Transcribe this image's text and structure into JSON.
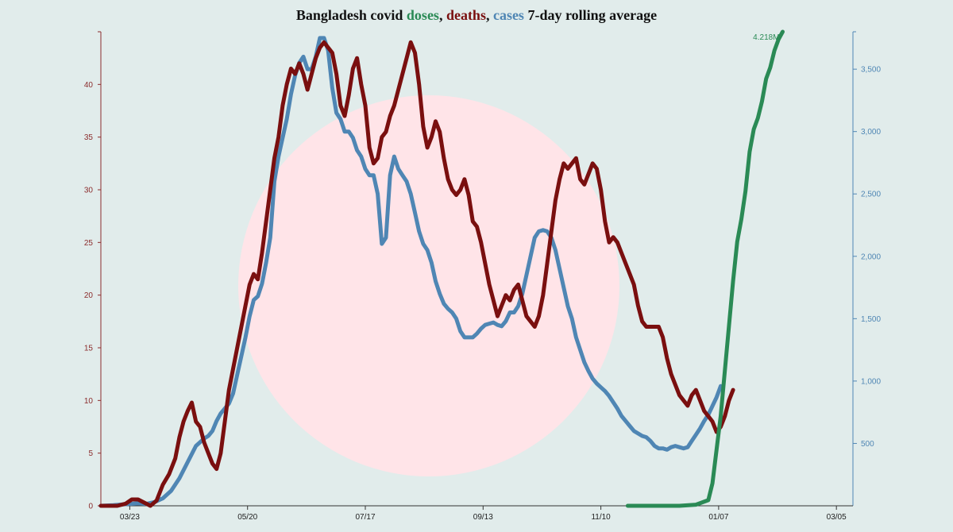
{
  "title": {
    "prefix": "Bangladesh covid ",
    "doses": "doses",
    "sep1": ", ",
    "deaths": "deaths",
    "sep2": ", ",
    "cases": "cases",
    "suffix": " 7-day rolling average"
  },
  "colors": {
    "background": "#e1eceb",
    "circle": "#ffe4e8",
    "doses": "#2a8a55",
    "deaths": "#7a0f0f",
    "cases": "#4f86b4",
    "left_axis": "#8b2c2c",
    "right_axis": "#4f86b4",
    "x_axis": "#333333"
  },
  "chart_data": {
    "type": "line",
    "title": "Bangladesh covid doses, deaths, cases 7-day rolling average",
    "x_ticks": [
      "03/23",
      "05/20",
      "07/17",
      "09/13",
      "11/10",
      "01/07",
      "03/05"
    ],
    "x_range": [
      0,
      364
    ],
    "left_axis": {
      "range": [
        0,
        45
      ],
      "ticks": [
        0,
        5,
        10,
        15,
        20,
        25,
        30,
        35,
        40
      ]
    },
    "right_axis": {
      "range": [
        0,
        3800
      ],
      "ticks": [
        500,
        1000,
        1500,
        2000,
        2500,
        3000,
        3500
      ],
      "tick_labels": [
        "500",
        "1,000",
        "1,500",
        "2,000",
        "2,500",
        "3,000",
        "3,500"
      ]
    },
    "annotations": [
      {
        "text": "4.218M",
        "series": "doses"
      }
    ],
    "series": [
      {
        "name": "deaths",
        "axis": "left",
        "points": [
          [
            0,
            0
          ],
          [
            8,
            0
          ],
          [
            12,
            0.2
          ],
          [
            15,
            0.6
          ],
          [
            18,
            0.6
          ],
          [
            21,
            0.3
          ],
          [
            24,
            0
          ],
          [
            27,
            0.5
          ],
          [
            30,
            2
          ],
          [
            33,
            3
          ],
          [
            36,
            4.5
          ],
          [
            38,
            6.5
          ],
          [
            40,
            8
          ],
          [
            42,
            9
          ],
          [
            44,
            9.8
          ],
          [
            46,
            8
          ],
          [
            48,
            7.5
          ],
          [
            50,
            6
          ],
          [
            52,
            5
          ],
          [
            54,
            4
          ],
          [
            56,
            3.5
          ],
          [
            58,
            5
          ],
          [
            60,
            8
          ],
          [
            62,
            11
          ],
          [
            64,
            13
          ],
          [
            66,
            15
          ],
          [
            68,
            17
          ],
          [
            70,
            19
          ],
          [
            72,
            21
          ],
          [
            74,
            22
          ],
          [
            76,
            21.5
          ],
          [
            78,
            24
          ],
          [
            80,
            27
          ],
          [
            82,
            30
          ],
          [
            84,
            33
          ],
          [
            86,
            35
          ],
          [
            88,
            38
          ],
          [
            90,
            40
          ],
          [
            92,
            41.5
          ],
          [
            94,
            41
          ],
          [
            96,
            42
          ],
          [
            98,
            41
          ],
          [
            100,
            39.5
          ],
          [
            102,
            41
          ],
          [
            104,
            42.5
          ],
          [
            106,
            43.5
          ],
          [
            108,
            44
          ],
          [
            110,
            43.5
          ],
          [
            112,
            43
          ],
          [
            114,
            41
          ],
          [
            116,
            38
          ],
          [
            118,
            37
          ],
          [
            120,
            39
          ],
          [
            122,
            41.5
          ],
          [
            124,
            42.5
          ],
          [
            126,
            40
          ],
          [
            128,
            38
          ],
          [
            130,
            34
          ],
          [
            132,
            32.5
          ],
          [
            134,
            33
          ],
          [
            136,
            35
          ],
          [
            138,
            35.5
          ],
          [
            140,
            37
          ],
          [
            142,
            38
          ],
          [
            144,
            39.5
          ],
          [
            146,
            41
          ],
          [
            148,
            42.5
          ],
          [
            150,
            44
          ],
          [
            152,
            43
          ],
          [
            154,
            40
          ],
          [
            156,
            36
          ],
          [
            158,
            34
          ],
          [
            160,
            35
          ],
          [
            162,
            36.5
          ],
          [
            164,
            35.5
          ],
          [
            166,
            33
          ],
          [
            168,
            31
          ],
          [
            170,
            30
          ],
          [
            172,
            29.5
          ],
          [
            174,
            30
          ],
          [
            176,
            31
          ],
          [
            178,
            29.5
          ],
          [
            180,
            27
          ],
          [
            182,
            26.5
          ],
          [
            184,
            25
          ],
          [
            186,
            23
          ],
          [
            188,
            21
          ],
          [
            190,
            19.5
          ],
          [
            192,
            18
          ],
          [
            194,
            19
          ],
          [
            196,
            20
          ],
          [
            198,
            19.5
          ],
          [
            200,
            20.5
          ],
          [
            202,
            21
          ],
          [
            204,
            19.5
          ],
          [
            206,
            18
          ],
          [
            208,
            17.5
          ],
          [
            210,
            17
          ],
          [
            212,
            18
          ],
          [
            214,
            20
          ],
          [
            216,
            23
          ],
          [
            218,
            26
          ],
          [
            220,
            29
          ],
          [
            222,
            31
          ],
          [
            224,
            32.5
          ],
          [
            226,
            32
          ],
          [
            228,
            32.5
          ],
          [
            230,
            33
          ],
          [
            232,
            31
          ],
          [
            234,
            30.5
          ],
          [
            236,
            31.5
          ],
          [
            238,
            32.5
          ],
          [
            240,
            32
          ],
          [
            242,
            30
          ],
          [
            244,
            27
          ],
          [
            246,
            25
          ],
          [
            248,
            25.5
          ],
          [
            250,
            25
          ],
          [
            252,
            24
          ],
          [
            254,
            23
          ],
          [
            256,
            22
          ],
          [
            258,
            21
          ],
          [
            260,
            19
          ],
          [
            262,
            17.5
          ],
          [
            264,
            17
          ],
          [
            266,
            17
          ],
          [
            268,
            17
          ],
          [
            270,
            17
          ],
          [
            272,
            16
          ],
          [
            274,
            14
          ],
          [
            276,
            12.5
          ],
          [
            278,
            11.5
          ],
          [
            280,
            10.5
          ],
          [
            282,
            10
          ],
          [
            284,
            9.5
          ],
          [
            286,
            10.5
          ],
          [
            288,
            11
          ],
          [
            290,
            10
          ],
          [
            292,
            9
          ],
          [
            294,
            8.5
          ],
          [
            296,
            8
          ],
          [
            298,
            7
          ],
          [
            300,
            7.5
          ],
          [
            302,
            8.5
          ],
          [
            304,
            10
          ],
          [
            306,
            11
          ]
        ]
      },
      {
        "name": "cases",
        "axis": "right",
        "points": [
          [
            0,
            0
          ],
          [
            6,
            5
          ],
          [
            10,
            10
          ],
          [
            14,
            15
          ],
          [
            18,
            20
          ],
          [
            22,
            15
          ],
          [
            26,
            30
          ],
          [
            30,
            60
          ],
          [
            34,
            120
          ],
          [
            38,
            220
          ],
          [
            42,
            350
          ],
          [
            46,
            480
          ],
          [
            50,
            540
          ],
          [
            52,
            560
          ],
          [
            54,
            600
          ],
          [
            56,
            680
          ],
          [
            58,
            740
          ],
          [
            60,
            780
          ],
          [
            62,
            820
          ],
          [
            64,
            900
          ],
          [
            66,
            1050
          ],
          [
            68,
            1200
          ],
          [
            70,
            1350
          ],
          [
            72,
            1520
          ],
          [
            74,
            1650
          ],
          [
            76,
            1680
          ],
          [
            78,
            1780
          ],
          [
            80,
            1950
          ],
          [
            82,
            2150
          ],
          [
            84,
            2600
          ],
          [
            86,
            2800
          ],
          [
            88,
            2950
          ],
          [
            90,
            3100
          ],
          [
            92,
            3300
          ],
          [
            94,
            3450
          ],
          [
            96,
            3550
          ],
          [
            98,
            3600
          ],
          [
            100,
            3500
          ],
          [
            102,
            3500
          ],
          [
            104,
            3600
          ],
          [
            106,
            3750
          ],
          [
            108,
            3750
          ],
          [
            110,
            3650
          ],
          [
            112,
            3350
          ],
          [
            114,
            3150
          ],
          [
            116,
            3100
          ],
          [
            118,
            3000
          ],
          [
            120,
            3000
          ],
          [
            122,
            2950
          ],
          [
            124,
            2850
          ],
          [
            126,
            2800
          ],
          [
            128,
            2700
          ],
          [
            130,
            2650
          ],
          [
            132,
            2650
          ],
          [
            134,
            2500
          ],
          [
            136,
            2100
          ],
          [
            138,
            2150
          ],
          [
            140,
            2650
          ],
          [
            142,
            2800
          ],
          [
            144,
            2700
          ],
          [
            146,
            2650
          ],
          [
            148,
            2600
          ],
          [
            150,
            2500
          ],
          [
            152,
            2350
          ],
          [
            154,
            2200
          ],
          [
            156,
            2100
          ],
          [
            158,
            2050
          ],
          [
            160,
            1950
          ],
          [
            162,
            1800
          ],
          [
            164,
            1700
          ],
          [
            166,
            1620
          ],
          [
            168,
            1580
          ],
          [
            170,
            1550
          ],
          [
            172,
            1500
          ],
          [
            174,
            1400
          ],
          [
            176,
            1350
          ],
          [
            178,
            1350
          ],
          [
            180,
            1350
          ],
          [
            182,
            1380
          ],
          [
            184,
            1420
          ],
          [
            186,
            1450
          ],
          [
            188,
            1460
          ],
          [
            190,
            1470
          ],
          [
            192,
            1450
          ],
          [
            194,
            1440
          ],
          [
            196,
            1480
          ],
          [
            198,
            1550
          ],
          [
            200,
            1550
          ],
          [
            202,
            1600
          ],
          [
            204,
            1700
          ],
          [
            206,
            1850
          ],
          [
            208,
            2000
          ],
          [
            210,
            2150
          ],
          [
            212,
            2200
          ],
          [
            214,
            2210
          ],
          [
            216,
            2200
          ],
          [
            218,
            2150
          ],
          [
            220,
            2050
          ],
          [
            222,
            1900
          ],
          [
            224,
            1750
          ],
          [
            226,
            1600
          ],
          [
            228,
            1500
          ],
          [
            230,
            1350
          ],
          [
            232,
            1250
          ],
          [
            234,
            1150
          ],
          [
            236,
            1080
          ],
          [
            238,
            1020
          ],
          [
            240,
            980
          ],
          [
            242,
            950
          ],
          [
            244,
            920
          ],
          [
            246,
            880
          ],
          [
            248,
            830
          ],
          [
            250,
            780
          ],
          [
            252,
            720
          ],
          [
            254,
            680
          ],
          [
            256,
            640
          ],
          [
            258,
            600
          ],
          [
            260,
            580
          ],
          [
            262,
            560
          ],
          [
            264,
            550
          ],
          [
            266,
            520
          ],
          [
            268,
            480
          ],
          [
            270,
            460
          ],
          [
            272,
            460
          ],
          [
            274,
            450
          ],
          [
            276,
            470
          ],
          [
            278,
            480
          ],
          [
            280,
            470
          ],
          [
            282,
            460
          ],
          [
            284,
            470
          ],
          [
            286,
            520
          ],
          [
            288,
            570
          ],
          [
            290,
            620
          ],
          [
            292,
            680
          ],
          [
            294,
            730
          ],
          [
            296,
            800
          ],
          [
            298,
            870
          ],
          [
            300,
            960
          ]
        ]
      },
      {
        "name": "doses",
        "axis": "right_scaled",
        "note": "4.218M",
        "points": [
          [
            255,
            0
          ],
          [
            280,
            0
          ],
          [
            288,
            0.01
          ],
          [
            294,
            0.05
          ],
          [
            296,
            0.2
          ],
          [
            298,
            0.5
          ],
          [
            300,
            0.8
          ],
          [
            302,
            1.2
          ],
          [
            304,
            1.6
          ],
          [
            306,
            2.0
          ],
          [
            308,
            2.35
          ],
          [
            310,
            2.55
          ],
          [
            312,
            2.8
          ],
          [
            314,
            3.15
          ],
          [
            316,
            3.35
          ],
          [
            318,
            3.45
          ],
          [
            320,
            3.6
          ],
          [
            322,
            3.8
          ],
          [
            324,
            3.9
          ],
          [
            326,
            4.05
          ],
          [
            328,
            4.15
          ],
          [
            330,
            4.218
          ]
        ]
      }
    ]
  }
}
